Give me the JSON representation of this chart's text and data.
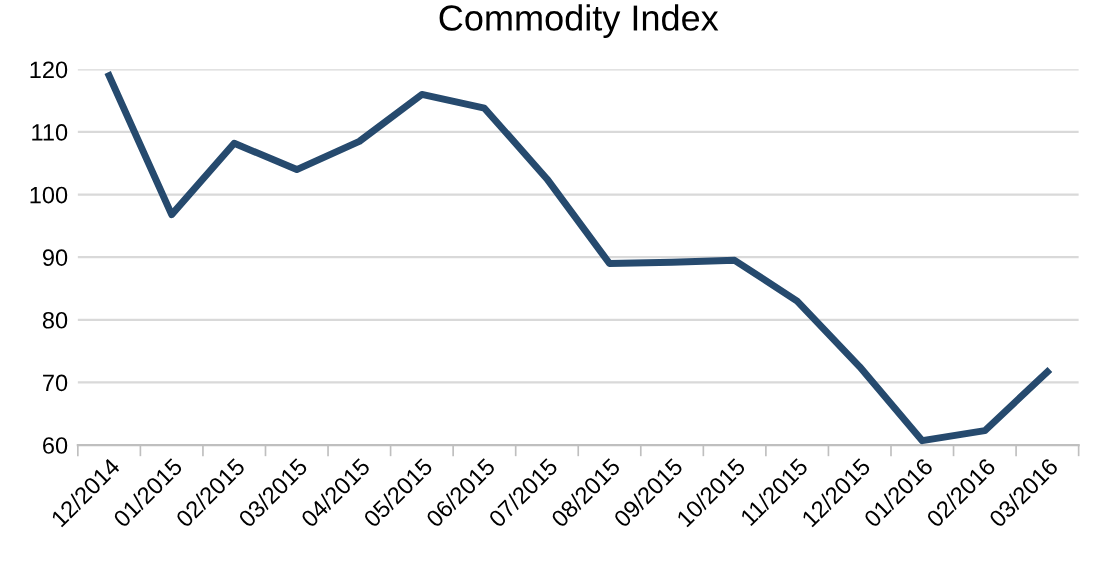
{
  "chart_data": {
    "type": "line",
    "title": "Commodity Index",
    "categories": [
      "12/2014",
      "01/2015",
      "02/2015",
      "03/2015",
      "04/2015",
      "05/2015",
      "06/2015",
      "07/2015",
      "08/2015",
      "09/2015",
      "10/2015",
      "11/2015",
      "12/2015",
      "01/2016",
      "02/2016",
      "03/2016"
    ],
    "series": [
      {
        "color": "#264a6e",
        "values": [
          119,
          96.8,
          108.2,
          104,
          108.5,
          116,
          113.8,
          102.5,
          89,
          89.2,
          89.5,
          83,
          72.5,
          60.7,
          62.3,
          71.7
        ]
      }
    ],
    "ylim": [
      60,
      120
    ],
    "yticks": [
      60,
      70,
      80,
      90,
      100,
      110,
      120
    ],
    "grid": "y",
    "legend": false,
    "marker": "none",
    "line_style": "solid"
  }
}
